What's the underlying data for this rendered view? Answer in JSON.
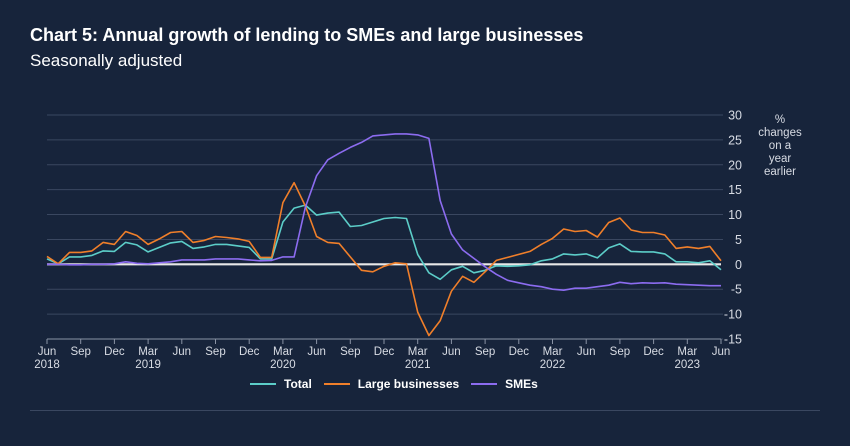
{
  "title": "Chart 5: Annual growth of lending to SMEs and large businesses",
  "subtitle": "Seasonally adjusted",
  "colors": {
    "background": "#17243b",
    "Total": "#5ccdc8",
    "Large businesses": "#f07f2a",
    "SMEs": "#8c6cf0",
    "zero_line": "#e8e8e8",
    "grid": "#3a4760"
  },
  "chart_data": {
    "type": "line",
    "title": "Chart 5: Annual growth of lending to SMEs and large businesses",
    "subtitle": "Seasonally adjusted",
    "ylabel": "% changes on a year earlier",
    "ylim": [
      -15,
      30
    ],
    "yticks": [
      30,
      25,
      20,
      15,
      10,
      5,
      0,
      -5,
      -10,
      -15
    ],
    "x_start": "2018-06",
    "x_end": "2023-06",
    "x_frequency": "monthly",
    "xticks": [
      {
        "month": "Jun",
        "year": "2018"
      },
      {
        "month": "Sep",
        "year": ""
      },
      {
        "month": "Dec",
        "year": ""
      },
      {
        "month": "Mar",
        "year": "2019"
      },
      {
        "month": "Jun",
        "year": ""
      },
      {
        "month": "Sep",
        "year": ""
      },
      {
        "month": "Dec",
        "year": ""
      },
      {
        "month": "Mar",
        "year": "2020"
      },
      {
        "month": "Jun",
        "year": ""
      },
      {
        "month": "Sep",
        "year": ""
      },
      {
        "month": "Dec",
        "year": ""
      },
      {
        "month": "Mar",
        "year": "2021"
      },
      {
        "month": "Jun",
        "year": ""
      },
      {
        "month": "Sep",
        "year": ""
      },
      {
        "month": "Dec",
        "year": ""
      },
      {
        "month": "Mar",
        "year": "2022"
      },
      {
        "month": "Jun",
        "year": ""
      },
      {
        "month": "Sep",
        "year": ""
      },
      {
        "month": "Dec",
        "year": ""
      },
      {
        "month": "Mar",
        "year": "2023"
      },
      {
        "month": "Jun",
        "year": ""
      }
    ],
    "grid": true,
    "legend_position": "bottom",
    "series": [
      {
        "name": "Total",
        "color": "#5ccdc8",
        "values": [
          1.1,
          0.1,
          1.5,
          1.5,
          1.8,
          2.7,
          2.6,
          4.4,
          3.9,
          2.5,
          3.4,
          4.3,
          4.6,
          3.2,
          3.5,
          4.0,
          4.0,
          3.7,
          3.4,
          1.1,
          1.1,
          8.5,
          11.3,
          11.9,
          9.9,
          10.3,
          10.5,
          7.6,
          7.8,
          8.5,
          9.2,
          9.4,
          9.2,
          2.0,
          -1.7,
          -3.0,
          -1.1,
          -0.4,
          -1.7,
          -1.2,
          -0.3,
          -0.4,
          -0.3,
          -0.1,
          0.7,
          1.1,
          2.1,
          1.9,
          2.1,
          1.3,
          3.3,
          4.1,
          2.6,
          2.5,
          2.5,
          2.1,
          0.5,
          0.5,
          0.3,
          0.7,
          -1.1
        ]
      },
      {
        "name": "Large businesses",
        "color": "#f07f2a",
        "values": [
          1.6,
          0.1,
          2.4,
          2.4,
          2.7,
          4.4,
          4.0,
          6.6,
          5.8,
          4.0,
          5.1,
          6.4,
          6.6,
          4.4,
          4.8,
          5.6,
          5.4,
          5.1,
          4.6,
          1.4,
          1.4,
          12.4,
          16.4,
          11.7,
          5.6,
          4.4,
          4.2,
          1.5,
          -1.2,
          -1.5,
          -0.4,
          0.3,
          0.1,
          -9.6,
          -14.3,
          -11.3,
          -5.4,
          -2.4,
          -3.6,
          -1.5,
          0.8,
          1.4,
          2.0,
          2.6,
          4.0,
          5.2,
          7.1,
          6.6,
          6.8,
          5.5,
          8.4,
          9.3,
          6.9,
          6.4,
          6.4,
          5.9,
          3.2,
          3.5,
          3.2,
          3.6,
          0.7
        ]
      },
      {
        "name": "SMEs",
        "color": "#8c6cf0",
        "values": [
          0.0,
          0.0,
          -0.1,
          -0.1,
          0.0,
          0.0,
          0.1,
          0.5,
          0.2,
          0.1,
          0.3,
          0.5,
          0.9,
          0.9,
          0.9,
          1.1,
          1.1,
          1.1,
          0.9,
          0.7,
          0.8,
          1.5,
          1.5,
          11.5,
          17.8,
          21.0,
          22.3,
          23.5,
          24.5,
          25.8,
          26.0,
          26.2,
          26.2,
          26.0,
          25.3,
          12.8,
          6.1,
          2.9,
          1.2,
          -0.5,
          -2.0,
          -3.2,
          -3.7,
          -4.2,
          -4.5,
          -5.0,
          -5.2,
          -4.8,
          -4.8,
          -4.5,
          -4.2,
          -3.6,
          -3.9,
          -3.7,
          -3.8,
          -3.7,
          -4.0,
          -4.1,
          -4.2,
          -4.3,
          -4.3
        ]
      }
    ]
  },
  "unit_label": "%\nchanges\non a\nyear\nearlier",
  "legend": [
    {
      "label": "Total",
      "color": "#5ccdc8"
    },
    {
      "label": "Large businesses",
      "color": "#f07f2a"
    },
    {
      "label": "SMEs",
      "color": "#8c6cf0"
    }
  ]
}
